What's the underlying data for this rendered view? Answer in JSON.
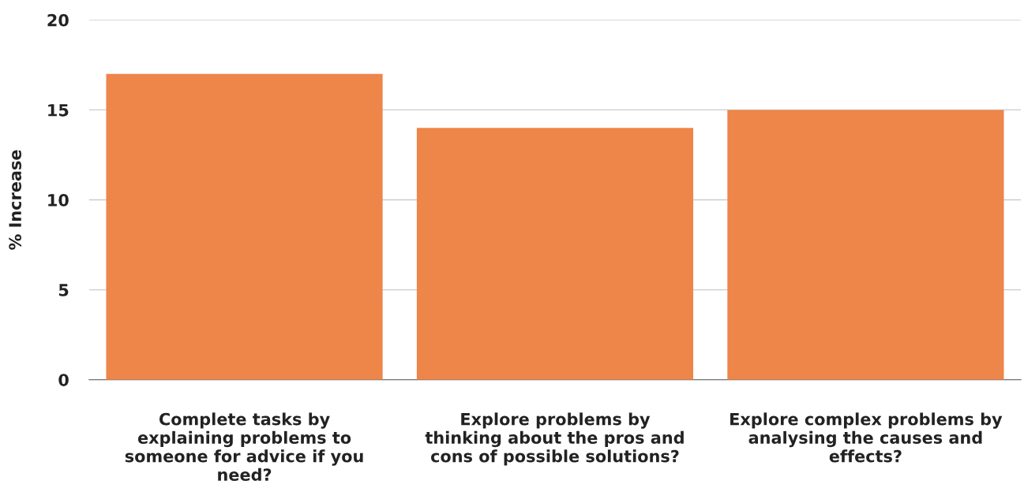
{
  "chart_data": {
    "type": "bar",
    "ylabel": "% Increase",
    "categories": [
      "Complete tasks by explaining problems to someone for advice if you need?",
      "Explore problems by thinking about the pros and cons of possible solutions?",
      "Explore complex problems by analysing the causes and effects?"
    ],
    "values": [
      17,
      14,
      15
    ],
    "color": "#ee8549",
    "ylim": [
      0,
      20
    ],
    "yticks": [
      0,
      5,
      10,
      15,
      20
    ],
    "grid": "y",
    "legend": false
  }
}
